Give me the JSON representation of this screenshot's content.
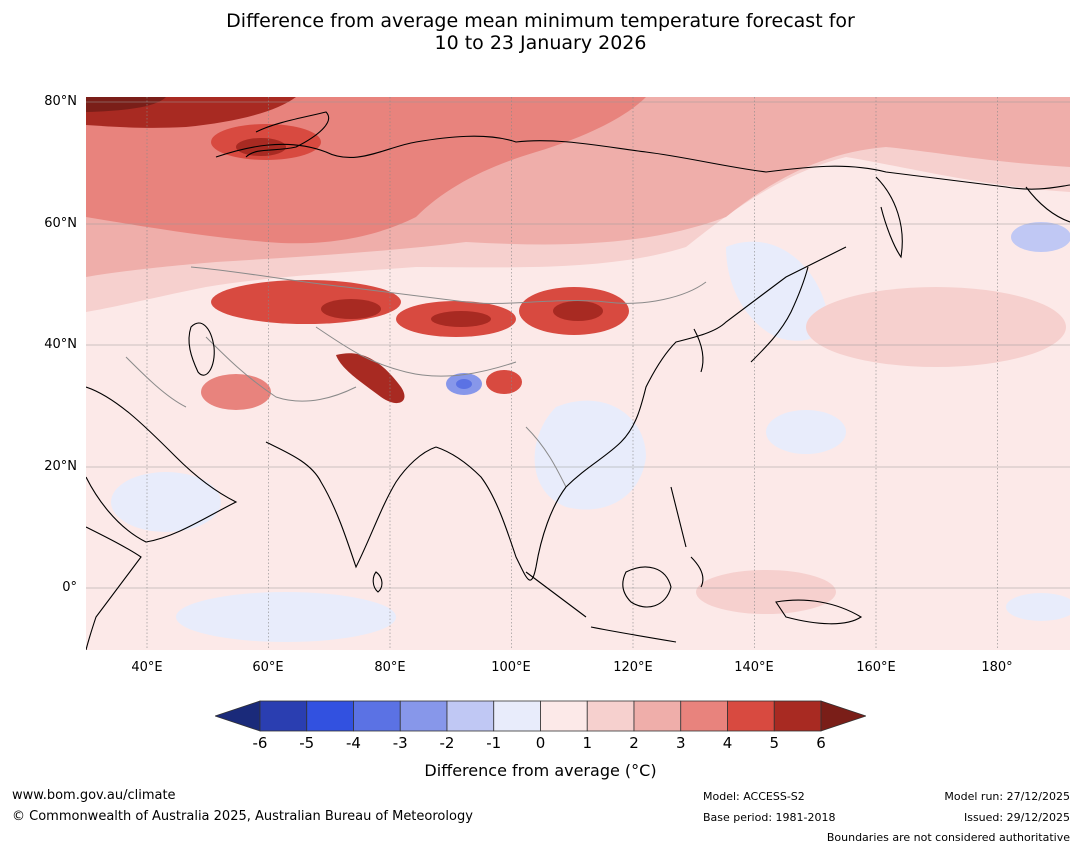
{
  "title_line1": "Difference from average mean minimum temperature forecast for",
  "title_line2": "10 to 23 January 2026",
  "lat_labels": [
    "80°N",
    "60°N",
    "40°N",
    "20°N",
    "0°"
  ],
  "lon_labels": [
    "40°E",
    "60°E",
    "80°E",
    "100°E",
    "120°E",
    "140°E",
    "160°E",
    "180°"
  ],
  "colorbar": {
    "ticks": [
      "-6",
      "-5",
      "-4",
      "-3",
      "-2",
      "-1",
      "0",
      "1",
      "2",
      "3",
      "4",
      "5",
      "6"
    ],
    "colors": [
      "#1a2a7a",
      "#2a3eb1",
      "#3251e0",
      "#5b72e4",
      "#8797ea",
      "#c0c8f4",
      "#e8ecfb",
      "#fce9e8",
      "#f6d0ce",
      "#efaeaa",
      "#e8837d",
      "#d84a40",
      "#a82a22",
      "#7a1e18"
    ],
    "title": "Difference from average (°C)"
  },
  "footer": {
    "website": "www.bom.gov.au/climate",
    "copyright": "© Commonwealth of Australia 2025, Australian Bureau of Meteorology",
    "model": "Model: ACCESS-S2",
    "base_period": "Base period: 1981-2018",
    "model_run": "Model run: 27/12/2025",
    "issued": "Issued: 29/12/2025",
    "disclaimer": "Boundaries are not considered authoritative"
  }
}
